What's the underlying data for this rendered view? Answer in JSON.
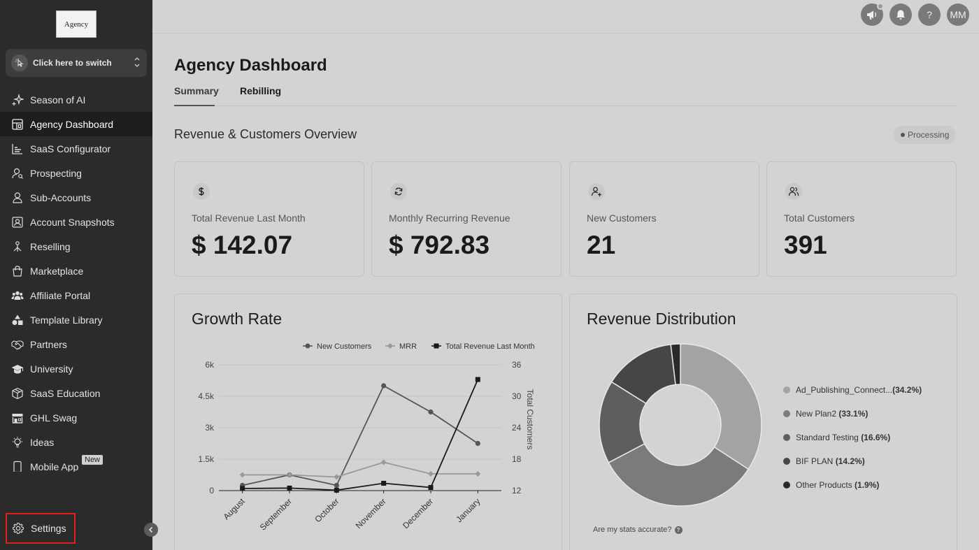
{
  "sidebar": {
    "logo_text": "Agency",
    "switcher_label": "Click here to switch",
    "items": [
      {
        "label": "Season of AI",
        "icon": "sparkles-icon"
      },
      {
        "label": "Agency Dashboard",
        "icon": "dashboard-icon",
        "active": true
      },
      {
        "label": "SaaS Configurator",
        "icon": "chart-bars-icon"
      },
      {
        "label": "Prospecting",
        "icon": "user-search-icon"
      },
      {
        "label": "Sub-Accounts",
        "icon": "user-icon"
      },
      {
        "label": "Account Snapshots",
        "icon": "snapshot-icon"
      },
      {
        "label": "Reselling",
        "icon": "reselling-icon"
      },
      {
        "label": "Marketplace",
        "icon": "shopping-bag-icon"
      },
      {
        "label": "Affiliate Portal",
        "icon": "users-group-icon"
      },
      {
        "label": "Template Library",
        "icon": "shapes-icon"
      },
      {
        "label": "Partners",
        "icon": "handshake-icon"
      },
      {
        "label": "University",
        "icon": "graduation-cap-icon"
      },
      {
        "label": "SaaS Education",
        "icon": "box-icon"
      },
      {
        "label": "GHL Swag",
        "icon": "store-icon"
      },
      {
        "label": "Ideas",
        "icon": "lightbulb-icon"
      },
      {
        "label": "Mobile App",
        "icon": "mobile-icon",
        "badge": "New"
      }
    ],
    "settings_label": "Settings"
  },
  "topbar": {
    "avatar_initials": "MM",
    "help_label": "?"
  },
  "page": {
    "title": "Agency Dashboard",
    "tabs": [
      "Summary",
      "Rebilling"
    ],
    "active_tab": "Summary",
    "section_title": "Revenue & Customers Overview",
    "status": "Processing"
  },
  "cards": [
    {
      "label": "Total Revenue Last Month",
      "value": "$ 142.07",
      "icon": "dollar-icon"
    },
    {
      "label": "Monthly Recurring Revenue",
      "value": "$ 792.83",
      "icon": "refresh-icon"
    },
    {
      "label": "New Customers",
      "value": "21",
      "icon": "user-plus-icon"
    },
    {
      "label": "Total Customers",
      "value": "391",
      "icon": "users-icon"
    }
  ],
  "growth": {
    "title": "Growth Rate",
    "right_axis_label": "Total Customers"
  },
  "distribution": {
    "title": "Revenue Distribution",
    "stats_note": "Are my stats accurate?",
    "legend": [
      {
        "name": "Ad_Publishing_Connect...",
        "pct": "(34.2%)",
        "color": "#a3a3a3"
      },
      {
        "name": "New Plan2",
        "pct": "(33.1%)",
        "color": "#7b7b7b"
      },
      {
        "name": "Standard Testing",
        "pct": "(16.6%)",
        "color": "#5e5e5e"
      },
      {
        "name": "BIF PLAN",
        "pct": "(14.2%)",
        "color": "#464646"
      },
      {
        "name": "Other Products",
        "pct": "(1.9%)",
        "color": "#2a2a2a"
      }
    ]
  },
  "chart_data": [
    {
      "type": "line",
      "title": "Growth Rate",
      "categories": [
        "August",
        "September",
        "October",
        "November",
        "December",
        "January"
      ],
      "y_left": {
        "ticks": [
          "0",
          "1.5k",
          "3k",
          "4.5k",
          "6k"
        ],
        "ylim": [
          0,
          6000
        ]
      },
      "y_right": {
        "label": "Total Customers",
        "ticks": [
          "12",
          "18",
          "24",
          "30",
          "36"
        ],
        "ylim": [
          12,
          36
        ]
      },
      "legend_placement": "top-right",
      "series": [
        {
          "name": "New Customers",
          "axis": "right",
          "marker": "circle",
          "color": "#555555",
          "values": [
            13,
            15,
            13,
            32,
            27,
            21
          ]
        },
        {
          "name": "MRR",
          "axis": "left",
          "marker": "diamond",
          "color": "#999999",
          "values": [
            750,
            750,
            650,
            1350,
            800,
            800
          ]
        },
        {
          "name": "Total Revenue Last Month",
          "axis": "left",
          "marker": "square",
          "color": "#1a1a1a",
          "values": [
            100,
            120,
            20,
            350,
            150,
            5300
          ]
        }
      ]
    },
    {
      "type": "pie",
      "title": "Revenue Distribution",
      "labels": [
        "Ad_Publishing_Connect...",
        "New Plan2",
        "Standard Testing",
        "BIF PLAN",
        "Other Products"
      ],
      "values": [
        34.2,
        33.1,
        16.6,
        14.2,
        1.9
      ],
      "colors": [
        "#a3a3a3",
        "#7b7b7b",
        "#5e5e5e",
        "#464646",
        "#2a2a2a"
      ],
      "donut": true
    }
  ]
}
